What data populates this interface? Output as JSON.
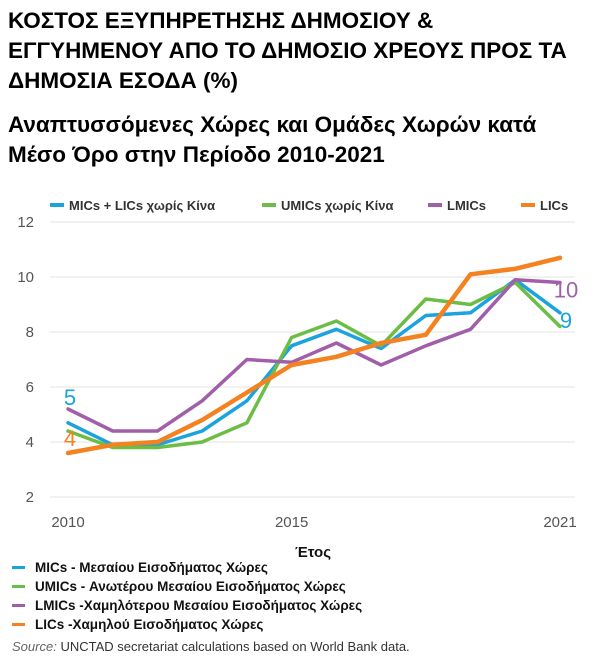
{
  "title": "ΚΟΣΤΟΣ ΕΞΥΠΗΡΕΤΗΣΗΣ ΔΗΜΟΣΙΟΥ & ΕΓΓΥΗΜΕΝΟΥ ΑΠΟ ΤΟ ΔΗΜΟΣΙΟ ΧΡΕΟΥΣ ΠΡΟΣ ΤΑ ΔΗΜΟΣΙΑ ΕΣΟΔΑ (%)",
  "subtitle": "Αναπτυσσόμενες Χώρες και Ομάδες Χωρών κατά Μέσο Όρο στην Περίοδο 2010-2021",
  "bottom_legend": [
    {
      "text": "MICs - Μεσαίου Εισοδήματος Χώρες",
      "color": "#1aa3dc"
    },
    {
      "text": "UMICs - Ανωτέρου Μεσαίου Εισοδήματος Χώρες",
      "color": "#6cbd45"
    },
    {
      "text": "LMICs -Χαμηλότερου Μεσαίου Εισοδήματος Χώρες",
      "color": "#a05fa8"
    },
    {
      "text": "LICs -Χαμηλού Εισοδήματος Χώρες",
      "color": "#f58220"
    }
  ],
  "source": {
    "label": "Source:",
    "text": "UNCTAD secretariat calculations based on World Bank data."
  },
  "chart_data": {
    "type": "line",
    "xlabel": "Έτος",
    "ylabel": "",
    "x": [
      2010,
      2011,
      2012,
      2013,
      2014,
      2015,
      2016,
      2017,
      2018,
      2019,
      2020,
      2021
    ],
    "xticks": [
      2010,
      2015,
      2021
    ],
    "ylim": [
      2,
      12
    ],
    "yticks": [
      2,
      4,
      6,
      8,
      10,
      12
    ],
    "grid": "horizontal",
    "legend_position": "top",
    "series": [
      {
        "name": "MICs + LICs χωρίς Κίνα",
        "color": "#1aa3dc",
        "values": [
          4.7,
          3.9,
          3.9,
          4.4,
          5.5,
          7.5,
          8.1,
          7.4,
          8.6,
          8.7,
          9.9,
          8.7
        ],
        "start_label": "5",
        "end_label": "9"
      },
      {
        "name": "UMICs χωρίς Κίνα",
        "color": "#6cbd45",
        "values": [
          4.4,
          3.8,
          3.8,
          4.0,
          4.7,
          7.8,
          8.4,
          7.5,
          9.2,
          9.0,
          9.8,
          8.2
        ],
        "start_label": "",
        "end_label": ""
      },
      {
        "name": "LMICs",
        "color": "#a05fa8",
        "values": [
          5.2,
          4.4,
          4.4,
          5.5,
          7.0,
          6.9,
          7.6,
          6.8,
          7.5,
          8.1,
          9.9,
          9.8
        ],
        "start_label": "",
        "end_label": "10"
      },
      {
        "name": "LICs",
        "color": "#f58220",
        "values": [
          3.6,
          3.9,
          4.0,
          4.8,
          5.8,
          6.8,
          7.1,
          7.6,
          7.9,
          10.1,
          10.3,
          10.7
        ],
        "start_label": "4",
        "end_label": ""
      }
    ]
  }
}
